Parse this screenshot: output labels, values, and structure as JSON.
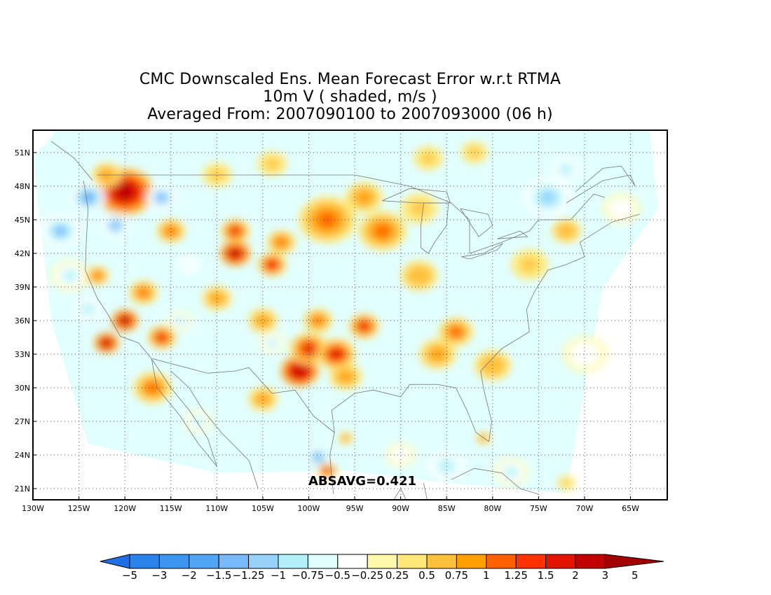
{
  "title": {
    "line1": "CMC Downscaled Ens. Mean Forecast Error w.r.t RTMA",
    "line2": "10m V ( shaded, m/s )",
    "line3": "Averaged From: 2007090100 to 2007093000 (06 h)"
  },
  "annotation": "ABSAVG=0.421",
  "map": {
    "lon_range": [
      -130,
      -61
    ],
    "lat_range": [
      20,
      53
    ],
    "lat_ticks": [
      {
        "value": 21,
        "label": "21N"
      },
      {
        "value": 24,
        "label": "24N"
      },
      {
        "value": 27,
        "label": "27N"
      },
      {
        "value": 30,
        "label": "30N"
      },
      {
        "value": 33,
        "label": "33N"
      },
      {
        "value": 36,
        "label": "36N"
      },
      {
        "value": 39,
        "label": "39N"
      },
      {
        "value": 42,
        "label": "42N"
      },
      {
        "value": 45,
        "label": "45N"
      },
      {
        "value": 48,
        "label": "48N"
      },
      {
        "value": 51,
        "label": "51N"
      }
    ],
    "lon_ticks": [
      {
        "value": -130,
        "label": "130W"
      },
      {
        "value": -125,
        "label": "125W"
      },
      {
        "value": -120,
        "label": "120W"
      },
      {
        "value": -115,
        "label": "115W"
      },
      {
        "value": -110,
        "label": "110W"
      },
      {
        "value": -105,
        "label": "105W"
      },
      {
        "value": -100,
        "label": "100W"
      },
      {
        "value": -95,
        "label": "95W"
      },
      {
        "value": -90,
        "label": "90W"
      },
      {
        "value": -85,
        "label": "85W"
      },
      {
        "value": -80,
        "label": "80W"
      },
      {
        "value": -75,
        "label": "75W"
      },
      {
        "value": -70,
        "label": "70W"
      },
      {
        "value": -65,
        "label": "65W"
      }
    ],
    "grid": "dotted"
  },
  "colorbar": {
    "labels": [
      "−5",
      "−3",
      "−2",
      "−1.5",
      "−1.25",
      "−1",
      "−0.75",
      "−0.5",
      "−0.25",
      "0.25",
      "0.5",
      "0.75",
      "1",
      "1.25",
      "1.5",
      "2",
      "3",
      "5"
    ],
    "colors": [
      "#1e6ee6",
      "#2a82eb",
      "#3c96f0",
      "#50a5f5",
      "#78b9fa",
      "#96d2fa",
      "#b4f0fa",
      "#e1ffff",
      "#ffffff",
      "#fffaaa",
      "#ffe878",
      "#ffc03c",
      "#ffa000",
      "#ff6000",
      "#ff3200",
      "#e11400",
      "#c00000",
      "#a50000"
    ]
  },
  "field_blobs": [
    {
      "lon": -120,
      "lat": 47.5,
      "v": 2.2,
      "r": 3.0
    },
    {
      "lon": -122,
      "lat": 49,
      "v": 0.8,
      "r": 2.0
    },
    {
      "lon": -124,
      "lat": 47,
      "v": -1.6,
      "r": 1.8
    },
    {
      "lon": -127,
      "lat": 44,
      "v": -1.3,
      "r": 2.2
    },
    {
      "lon": -126,
      "lat": 40,
      "v": -1.0,
      "r": 2.0
    },
    {
      "lon": -124,
      "lat": 37,
      "v": -0.9,
      "r": 2.0
    },
    {
      "lon": -121,
      "lat": 44.5,
      "v": -1.5,
      "r": 1.5
    },
    {
      "lon": -116,
      "lat": 47,
      "v": -1.4,
      "r": 1.6
    },
    {
      "lon": -115,
      "lat": 44,
      "v": 1.2,
      "r": 1.5
    },
    {
      "lon": -123,
      "lat": 40,
      "v": 1.2,
      "r": 1.2
    },
    {
      "lon": -120,
      "lat": 36,
      "v": 2.4,
      "r": 1.4
    },
    {
      "lon": -122,
      "lat": 34,
      "v": 2.4,
      "r": 1.3
    },
    {
      "lon": -118,
      "lat": 38.5,
      "v": 1.0,
      "r": 1.5
    },
    {
      "lon": -116,
      "lat": 34.5,
      "v": 1.5,
      "r": 1.5
    },
    {
      "lon": -114,
      "lat": 36,
      "v": -1.0,
      "r": 1.3
    },
    {
      "lon": -117,
      "lat": 30,
      "v": 1.0,
      "r": 2.0
    },
    {
      "lon": -112,
      "lat": 27,
      "v": -1.0,
      "r": 1.5
    },
    {
      "lon": -108,
      "lat": 42,
      "v": 2.4,
      "r": 1.6
    },
    {
      "lon": -108,
      "lat": 44,
      "v": 1.5,
      "r": 1.5
    },
    {
      "lon": -104,
      "lat": 41,
      "v": 1.8,
      "r": 1.5
    },
    {
      "lon": -103,
      "lat": 43,
      "v": 1.0,
      "r": 1.5
    },
    {
      "lon": -110,
      "lat": 38,
      "v": 0.8,
      "r": 2.0
    },
    {
      "lon": -105,
      "lat": 36,
      "v": 0.8,
      "r": 2.0
    },
    {
      "lon": -104,
      "lat": 34,
      "v": -1.0,
      "r": 1.4
    },
    {
      "lon": -101,
      "lat": 31.5,
      "v": 2.6,
      "r": 2.0
    },
    {
      "lon": -100,
      "lat": 33.5,
      "v": 1.5,
      "r": 2.0
    },
    {
      "lon": -97,
      "lat": 33,
      "v": 1.7,
      "r": 2.0
    },
    {
      "lon": -94,
      "lat": 35.5,
      "v": 1.6,
      "r": 1.6
    },
    {
      "lon": -99,
      "lat": 36,
      "v": 1.0,
      "r": 1.5
    },
    {
      "lon": -96,
      "lat": 31,
      "v": 0.9,
      "r": 2.2
    },
    {
      "lon": -105,
      "lat": 29,
      "v": 0.9,
      "r": 2.0
    },
    {
      "lon": -99,
      "lat": 23.8,
      "v": -1.6,
      "r": 1.2
    },
    {
      "lon": -98,
      "lat": 22.6,
      "v": 1.5,
      "r": 1.0
    },
    {
      "lon": -96,
      "lat": 25.5,
      "v": 0.8,
      "r": 1.0
    },
    {
      "lon": -98,
      "lat": 45,
      "v": 1.0,
      "r": 3.0
    },
    {
      "lon": -92,
      "lat": 44,
      "v": 1.0,
      "r": 2.5
    },
    {
      "lon": -94,
      "lat": 47,
      "v": 0.8,
      "r": 2.5
    },
    {
      "lon": -88,
      "lat": 46,
      "v": 0.6,
      "r": 2.5
    },
    {
      "lon": -88,
      "lat": 40,
      "v": 0.7,
      "r": 2.5
    },
    {
      "lon": -84,
      "lat": 35,
      "v": 1.3,
      "r": 1.8
    },
    {
      "lon": -86,
      "lat": 33,
      "v": 0.9,
      "r": 2.5
    },
    {
      "lon": -80,
      "lat": 32,
      "v": 0.7,
      "r": 2.5
    },
    {
      "lon": -81,
      "lat": 25.5,
      "v": 0.9,
      "r": 1.0
    },
    {
      "lon": -76,
      "lat": 41,
      "v": 0.6,
      "r": 2.5
    },
    {
      "lon": -72,
      "lat": 44,
      "v": 0.7,
      "r": 2.0
    },
    {
      "lon": -74,
      "lat": 47,
      "v": -1.1,
      "r": 2.5
    },
    {
      "lon": -72,
      "lat": 49.5,
      "v": -0.9,
      "r": 2.0
    },
    {
      "lon": -66,
      "lat": 46,
      "v": -0.5,
      "r": 2.5
    },
    {
      "lon": -70,
      "lat": 33,
      "v": -0.5,
      "r": 3.0
    },
    {
      "lon": -68,
      "lat": 28,
      "v": -0.4,
      "r": 3.0
    },
    {
      "lon": -85,
      "lat": 23,
      "v": -0.8,
      "r": 2.5
    },
    {
      "lon": -78,
      "lat": 22.5,
      "v": -1.0,
      "r": 1.8
    },
    {
      "lon": -90,
      "lat": 24,
      "v": -0.5,
      "r": 2.0
    },
    {
      "lon": -72,
      "lat": 21.5,
      "v": 0.6,
      "r": 1.2
    },
    {
      "lon": -113,
      "lat": 41,
      "v": -0.6,
      "r": 1.5
    },
    {
      "lon": -110,
      "lat": 49,
      "v": 0.5,
      "r": 2.0
    },
    {
      "lon": -104,
      "lat": 50,
      "v": 0.5,
      "r": 2.0
    },
    {
      "lon": -87,
      "lat": 50.5,
      "v": 0.5,
      "r": 2.0
    },
    {
      "lon": -82,
      "lat": 51,
      "v": 0.6,
      "r": 1.8
    }
  ]
}
